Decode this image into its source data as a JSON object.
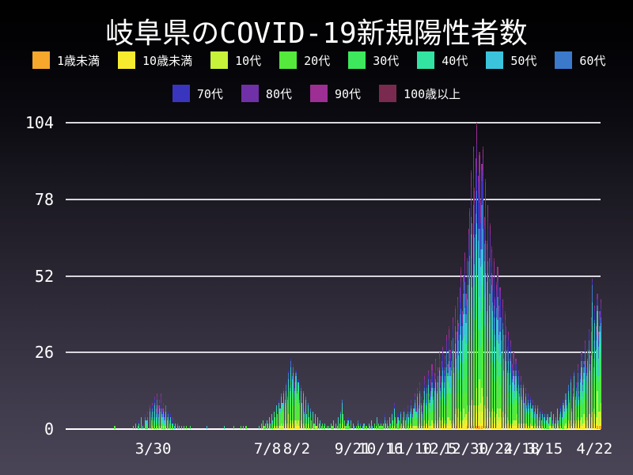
{
  "chart_data": {
    "type": "bar",
    "stacked": true,
    "title": "岐阜県のCOVID-19新規陽性者数",
    "legend_position": "top",
    "grid": true,
    "y_axis": {
      "ticks": [
        0,
        26,
        52,
        78,
        104
      ],
      "max": 104
    },
    "x_ticks": [
      {
        "label": "3/30",
        "index": 72
      },
      {
        "label": "7/8",
        "index": 166
      },
      {
        "label": "8/2",
        "index": 190
      },
      {
        "label": "9/21",
        "index": 236
      },
      {
        "label": "10/16",
        "index": 259
      },
      {
        "label": "11/10",
        "index": 283
      },
      {
        "label": "12/5",
        "index": 307
      },
      {
        "label": "12/30",
        "index": 329
      },
      {
        "label": "1/24",
        "index": 353
      },
      {
        "label": "2/18",
        "index": 375
      },
      {
        "label": "3/15",
        "index": 394
      },
      {
        "label": "4/22",
        "index": 435
      }
    ],
    "series": [
      {
        "name": "1歳未満",
        "color": "#f6a72c"
      },
      {
        "name": "10歳未満",
        "color": "#f7eb2f"
      },
      {
        "name": "10代",
        "color": "#c6f23a"
      },
      {
        "name": "20代",
        "color": "#55e93c"
      },
      {
        "name": "30代",
        "color": "#3de85d"
      },
      {
        "name": "40代",
        "color": "#33e3a2"
      },
      {
        "name": "50代",
        "color": "#3cc3dc"
      },
      {
        "name": "60代",
        "color": "#3b79cb"
      },
      {
        "name": "70代",
        "color": "#3a35be"
      },
      {
        "name": "80代",
        "color": "#7030a8"
      },
      {
        "name": "90代",
        "color": "#9c2e94"
      },
      {
        "name": "100歳以上",
        "color": "#7a2a4e"
      }
    ],
    "age_share_estimate": [
      0.008,
      0.045,
      0.085,
      0.2,
      0.145,
      0.135,
      0.125,
      0.09,
      0.07,
      0.055,
      0.035,
      0.007
    ],
    "daily_totals": [
      0,
      0,
      0,
      0,
      0,
      0,
      0,
      0,
      0,
      0,
      0,
      0,
      0,
      0,
      0,
      0,
      0,
      0,
      0,
      0,
      0,
      0,
      0,
      0,
      0,
      0,
      0,
      0,
      0,
      0,
      0,
      0,
      0,
      0,
      0,
      0,
      0,
      0,
      0,
      0,
      1,
      0,
      0,
      0,
      0,
      0,
      0,
      0,
      0,
      0,
      0,
      0,
      0,
      0,
      0,
      1,
      0,
      2,
      0,
      1,
      3,
      0,
      4,
      2,
      0,
      5,
      3,
      6,
      0,
      8,
      5,
      9,
      6,
      11,
      7,
      12,
      8,
      10,
      12,
      7,
      9,
      5,
      8,
      4,
      6,
      3,
      5,
      2,
      4,
      1,
      3,
      0,
      2,
      1,
      0,
      1,
      0,
      1,
      0,
      1,
      0,
      0,
      1,
      0,
      0,
      0,
      0,
      0,
      0,
      0,
      0,
      0,
      0,
      0,
      0,
      0,
      1,
      0,
      0,
      0,
      0,
      0,
      0,
      0,
      0,
      0,
      0,
      0,
      0,
      0,
      1,
      0,
      0,
      0,
      0,
      0,
      0,
      0,
      1,
      0,
      0,
      0,
      0,
      0,
      1,
      0,
      1,
      0,
      1,
      0,
      0,
      0,
      0,
      0,
      0,
      0,
      0,
      0,
      0,
      1,
      0,
      2,
      3,
      1,
      2,
      3,
      2,
      4,
      2,
      5,
      3,
      6,
      4,
      8,
      5,
      10,
      7,
      12,
      9,
      14,
      10,
      16,
      12,
      20,
      15,
      24,
      18,
      22,
      16,
      20,
      14,
      17,
      11,
      15,
      9,
      13,
      7,
      11,
      5,
      9,
      4,
      7,
      3,
      6,
      2,
      5,
      1,
      4,
      2,
      3,
      1,
      2,
      1,
      2,
      0,
      1,
      1,
      0,
      2,
      1,
      3,
      0,
      2,
      1,
      4,
      2,
      6,
      10,
      5,
      3,
      1,
      2,
      4,
      1,
      3,
      0,
      2,
      1,
      0,
      1,
      3,
      1,
      2,
      0,
      1,
      2,
      0,
      1,
      0,
      2,
      1,
      3,
      1,
      0,
      2,
      1,
      4,
      2,
      1,
      3,
      1,
      2,
      5,
      2,
      3,
      1,
      4,
      2,
      6,
      3,
      9,
      4,
      2,
      5,
      3,
      6,
      2,
      4,
      7,
      3,
      5,
      8,
      4,
      6,
      10,
      5,
      8,
      12,
      7,
      14,
      9,
      16,
      11,
      8,
      13,
      18,
      10,
      15,
      20,
      12,
      17,
      22,
      14,
      19,
      24,
      16,
      21,
      26,
      18,
      23,
      28,
      20,
      25,
      32,
      22,
      35,
      27,
      30,
      38,
      26,
      42,
      33,
      45,
      36,
      48,
      55,
      40,
      52,
      60,
      46,
      58,
      68,
      75,
      88,
      70,
      96,
      82,
      92,
      104,
      86,
      94,
      78,
      90,
      96,
      72,
      85,
      64,
      76,
      58,
      70,
      62,
      52,
      58,
      45,
      50,
      55,
      42,
      48,
      38,
      44,
      32,
      40,
      35,
      28,
      33,
      24,
      30,
      22,
      26,
      18,
      24,
      16,
      20,
      14,
      18,
      12,
      16,
      10,
      14,
      8,
      12,
      9,
      11,
      7,
      10,
      6,
      9,
      5,
      8,
      4,
      7,
      3,
      6,
      4,
      5,
      3,
      5,
      2,
      4,
      6,
      3,
      5,
      2,
      4,
      7,
      3,
      6,
      8,
      5,
      10,
      7,
      12,
      9,
      15,
      11,
      18,
      8,
      14,
      20,
      12,
      16,
      22,
      13,
      19,
      26,
      17,
      23,
      30,
      21,
      27,
      34,
      25,
      38,
      51,
      30,
      42,
      35,
      46,
      33,
      40,
      44
    ],
    "colors": {
      "background_top": "#000000",
      "background_bottom": "#4a4556",
      "text": "#ffffff",
      "grid": "#d9d7de",
      "axis": "#ffffff"
    }
  }
}
